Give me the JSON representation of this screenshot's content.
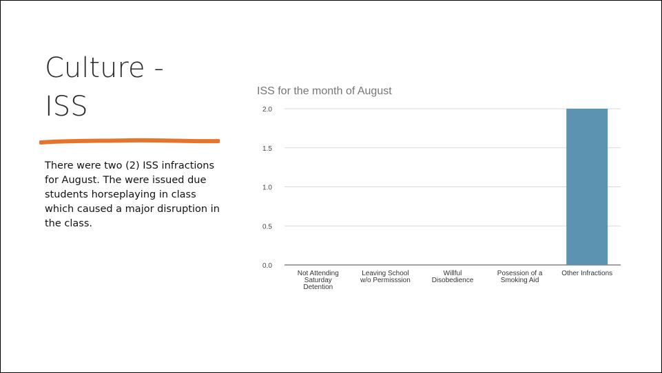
{
  "slide": {
    "title_lines": [
      "Culture -",
      "ISS"
    ],
    "body": "There were two (2) ISS infractions for August. The were issued due students horseplaying in class which caused a major disruption in the class."
  },
  "colors": {
    "accent": "#e8742a",
    "bar": "#5b93b0",
    "grid": "#d9d9d9"
  },
  "chart_data": {
    "type": "bar",
    "title": "ISS for the month of August",
    "categories": [
      [
        "Not Attending",
        "Saturday",
        "Detention"
      ],
      [
        "Leaving School",
        "w/o Permisssion"
      ],
      [
        "Willful",
        "Disobedience"
      ],
      [
        "Posession of a",
        "Smoking Aid"
      ],
      [
        "Other Infractions"
      ]
    ],
    "values": [
      0,
      0,
      0,
      0,
      2
    ],
    "ylim": [
      0,
      2
    ],
    "yticks": [
      "0.0",
      "0.5",
      "1.0",
      "1.5",
      "2.0"
    ],
    "grid": true,
    "legend": "none"
  }
}
